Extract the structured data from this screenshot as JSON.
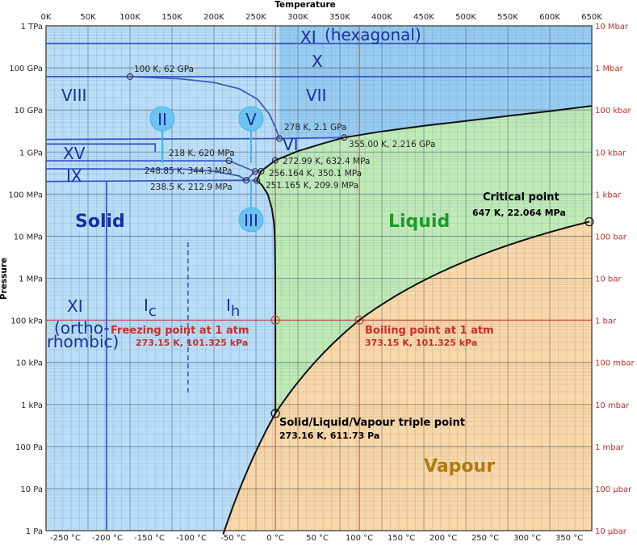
{
  "chart_data": {
    "type": "phase-diagram",
    "xlabel": "Temperature",
    "ylabel": "Pressure",
    "x_unit": "K",
    "y_scale": "log",
    "xlim": [
      0,
      650
    ],
    "ylim_pa": [
      1,
      1000000000000.0
    ],
    "grid": true,
    "top_ticks": [
      "0K",
      "50K",
      "100K",
      "150K",
      "200K",
      "250K",
      "300K",
      "350K",
      "400K",
      "450K",
      "500K",
      "550K",
      "600K",
      "650K"
    ],
    "bottom_ticks": [
      "-250 °C",
      "-200 °C",
      "-150 °C",
      "-100 °C",
      "-50 °C",
      "0 °C",
      "50 °C",
      "100 °C",
      "150 °C",
      "200 °C",
      "250 °C",
      "300 °C",
      "350 °C"
    ],
    "left_ticks": [
      "1 TPa",
      "100 GPa",
      "10 GPa",
      "1 GPa",
      "100 MPa",
      "10 MPa",
      "1 MPa",
      "100 kPa",
      "10 kPa",
      "1 kPa",
      "100 Pa",
      "10 Pa",
      "1 Pa"
    ],
    "right_ticks": [
      "10 Mbar",
      "1 Mbar",
      "100 kbar",
      "10 kbar",
      "1 kbar",
      "100 bar",
      "10 bar",
      "1 bar",
      "100 mbar",
      "10 mbar",
      "1 mbar",
      "100 µbar",
      "10 µbar"
    ],
    "regions": {
      "solid": "Solid",
      "liquid": "Liquid",
      "vapour": "Vapour"
    },
    "phases": {
      "xi_hex": "XI",
      "hexagonal": "(hexagonal)",
      "x": "X",
      "vii": "VII",
      "viii": "VIII",
      "vi": "VI",
      "xv": "XV",
      "ix": "IX",
      "ii": "II",
      "v": "V",
      "iii": "III",
      "xi_orth": "XI",
      "ortho1": "(ortho-",
      "ortho2": "rhombic)",
      "ic": "I",
      "ic_sub": "c",
      "ih": "I",
      "ih_sub": "h"
    },
    "points": [
      {
        "T": 100,
        "P": 62000000000.0,
        "label": "100 K, 62 GPa"
      },
      {
        "T": 278,
        "P": 2100000000.0,
        "label": "278 K, 2.1 GPa"
      },
      {
        "T": 355,
        "P": 2216000000.0,
        "label": "355.00 K, 2.216 GPa"
      },
      {
        "T": 218,
        "P": 620000000.0,
        "label": "218 K, 620 MPa"
      },
      {
        "T": 272.99,
        "P": 632400000.0,
        "label": "272.99 K, 632.4 MPa"
      },
      {
        "T": 248.85,
        "P": 344300000.0,
        "label": "248.85 K, 344.3 MPa"
      },
      {
        "T": 256.164,
        "P": 350100000.0,
        "label": "256.164 K, 350.1 MPa"
      },
      {
        "T": 238.5,
        "P": 212900000.0,
        "label": "238.5 K, 212.9 MPa"
      },
      {
        "T": 251.165,
        "P": 209900000.0,
        "label": "251.165 K, 209.9 MPa"
      }
    ],
    "critical": {
      "T": 647,
      "P": 22064000.0,
      "title": "Critical point",
      "label": "647 K, 22.064 MPa"
    },
    "triple": {
      "T": 273.16,
      "P": 611.73,
      "title": "Solid/Liquid/Vapour triple point",
      "label": "273.16 K, 611.73 Pa"
    },
    "freezing": {
      "T": 273.15,
      "P": 101325,
      "title": "Freezing point at 1 atm",
      "label": "273.15 K, 101.325 kPa"
    },
    "boiling": {
      "T": 373.15,
      "P": 101325,
      "title": "Boiling point at 1 atm",
      "label": "373.15 K, 101.325 kPa"
    },
    "colors": {
      "solid": "#b9ddf6",
      "solid_high": "#8ec8f0",
      "liquid": "#bfeab8",
      "vapour": "#f8d7a8",
      "boundary": "#3a5bc4",
      "reference": "#d84040",
      "phase_label": "#1a2f9e",
      "liquid_label": "#1f9a2a",
      "vapour_label": "#b07a10"
    }
  }
}
